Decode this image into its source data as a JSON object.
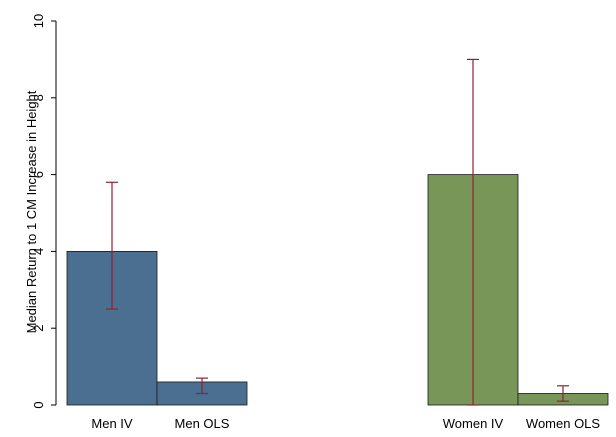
{
  "chart_data": {
    "type": "bar",
    "title": "",
    "xlabel": "",
    "ylabel": "Median Return to 1 CM Increase in Height",
    "ylim": [
      0,
      10
    ],
    "yticks": [
      0,
      2,
      4,
      6,
      8,
      10
    ],
    "grid": false,
    "categories": [
      "Men IV",
      "Men OLS",
      "Women IV",
      "Women OLS"
    ],
    "values": [
      4.0,
      0.6,
      6.0,
      0.3
    ],
    "error_low": [
      2.5,
      0.3,
      0.0,
      0.1
    ],
    "error_high": [
      5.8,
      0.7,
      9.0,
      0.5
    ],
    "bar_colors": [
      "#4a6f90",
      "#4a6f90",
      "#799659",
      "#799659"
    ],
    "error_color": "#8b2332"
  }
}
